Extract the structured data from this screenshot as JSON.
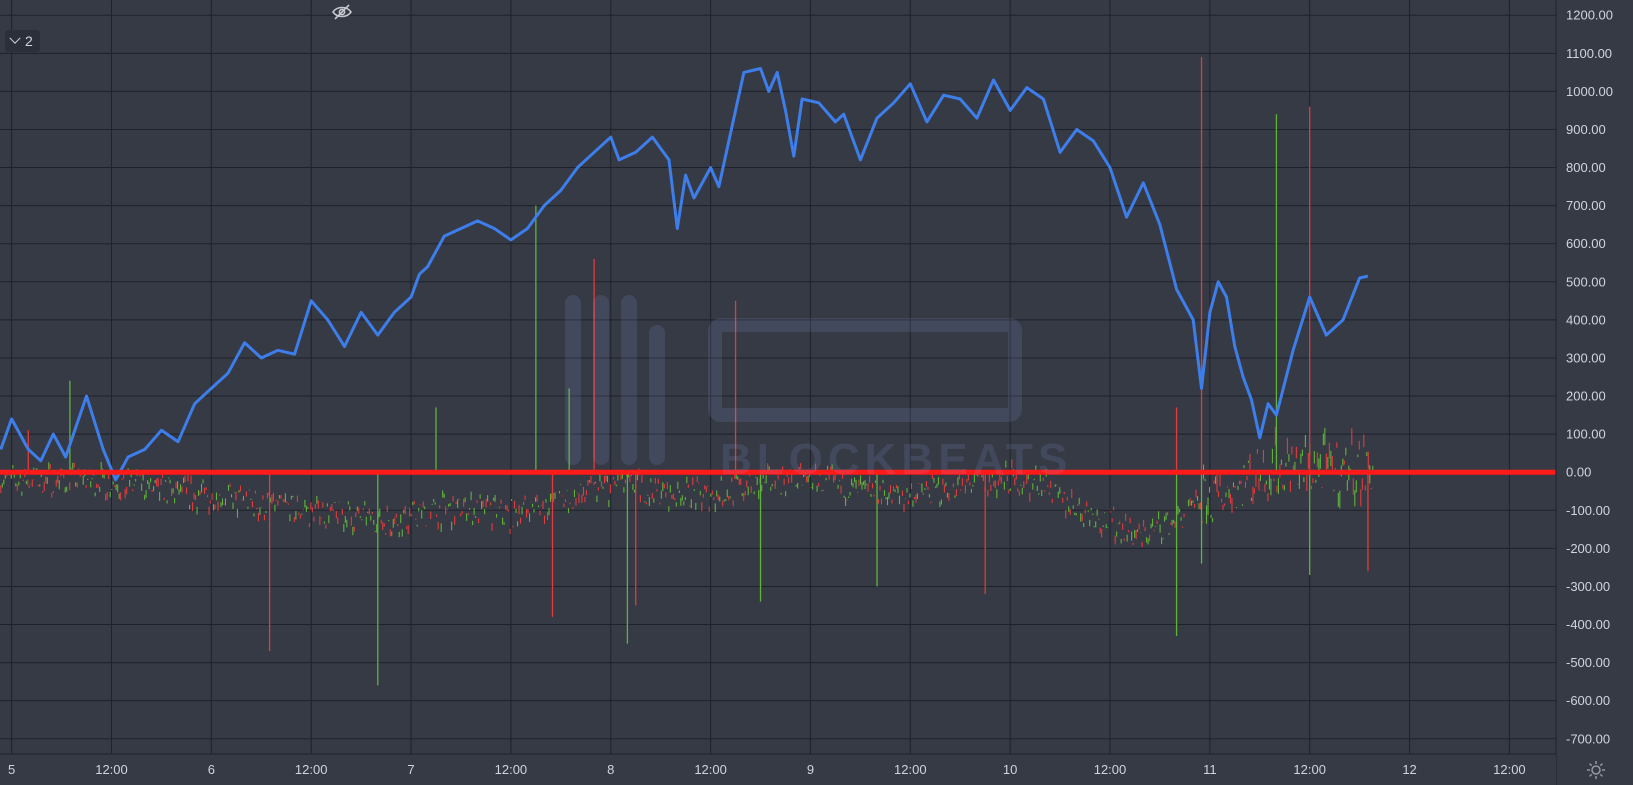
{
  "legend": {
    "count_label": "2"
  },
  "watermark": {
    "text": "BLOCKBEATS"
  },
  "colors": {
    "line": "#3d7eea",
    "baseline": "#ff1a1a",
    "up": "#5fb33a",
    "down": "#e23b3b",
    "grid": "#1e222b"
  },
  "chart_data": {
    "type": "line",
    "title": "",
    "xlabel": "",
    "ylabel": "",
    "ylim": [
      -740,
      1240
    ],
    "y_ticks": [
      "1200.00",
      "1100.00",
      "1000.00",
      "900.00",
      "800.00",
      "700.00",
      "600.00",
      "500.00",
      "400.00",
      "300.00",
      "200.00",
      "100.00",
      "0.00",
      "-100.00",
      "-200.00",
      "-300.00",
      "-400.00",
      "-500.00",
      "-600.00",
      "-700.00"
    ],
    "x_ticks": [
      {
        "label": "5",
        "t": 0
      },
      {
        "label": "12:00",
        "t": 12
      },
      {
        "label": "6",
        "t": 24
      },
      {
        "label": "12:00",
        "t": 36
      },
      {
        "label": "7",
        "t": 48
      },
      {
        "label": "12:00",
        "t": 60
      },
      {
        "label": "8",
        "t": 72
      },
      {
        "label": "12:00",
        "t": 84
      },
      {
        "label": "9",
        "t": 96
      },
      {
        "label": "12:00",
        "t": 108
      },
      {
        "label": "10",
        "t": 120
      },
      {
        "label": "12:00",
        "t": 132
      },
      {
        "label": "11",
        "t": 144
      },
      {
        "label": "12:00",
        "t": 156
      },
      {
        "label": "12",
        "t": 168
      },
      {
        "label": "12:00",
        "t": 180
      }
    ],
    "x_range": [
      -1.4,
      185.6
    ],
    "series": [
      {
        "values": [
          [
            -1.3,
            60
          ],
          [
            0,
            140
          ],
          [
            2,
            60
          ],
          [
            3.5,
            30
          ],
          [
            5,
            100
          ],
          [
            6.5,
            40
          ],
          [
            9,
            200
          ],
          [
            11,
            60
          ],
          [
            12.5,
            -20
          ],
          [
            14,
            40
          ],
          [
            16,
            60
          ],
          [
            18,
            110
          ],
          [
            20,
            80
          ],
          [
            22,
            180
          ],
          [
            24,
            220
          ],
          [
            26,
            260
          ],
          [
            28,
            340
          ],
          [
            30,
            300
          ],
          [
            32,
            320
          ],
          [
            34,
            310
          ],
          [
            36,
            450
          ],
          [
            38,
            400
          ],
          [
            40,
            330
          ],
          [
            42,
            420
          ],
          [
            44,
            360
          ],
          [
            46,
            420
          ],
          [
            48,
            460
          ],
          [
            49,
            520
          ],
          [
            50,
            540
          ],
          [
            52,
            620
          ],
          [
            54,
            640
          ],
          [
            56,
            660
          ],
          [
            58,
            640
          ],
          [
            60,
            610
          ],
          [
            62,
            640
          ],
          [
            64,
            700
          ],
          [
            66,
            740
          ],
          [
            68,
            800
          ],
          [
            70,
            840
          ],
          [
            72,
            880
          ],
          [
            73,
            820
          ],
          [
            75,
            840
          ],
          [
            77,
            880
          ],
          [
            79,
            820
          ],
          [
            80,
            640
          ],
          [
            81,
            780
          ],
          [
            82,
            720
          ],
          [
            84,
            800
          ],
          [
            85,
            750
          ],
          [
            86,
            850
          ],
          [
            88,
            1050
          ],
          [
            90,
            1060
          ],
          [
            91,
            1000
          ],
          [
            92,
            1050
          ],
          [
            93,
            950
          ],
          [
            94,
            830
          ],
          [
            95,
            980
          ],
          [
            97,
            970
          ],
          [
            99,
            920
          ],
          [
            100,
            940
          ],
          [
            102,
            820
          ],
          [
            104,
            930
          ],
          [
            106,
            970
          ],
          [
            108,
            1020
          ],
          [
            110,
            920
          ],
          [
            112,
            990
          ],
          [
            114,
            980
          ],
          [
            116,
            930
          ],
          [
            118,
            1030
          ],
          [
            120,
            950
          ],
          [
            122,
            1010
          ],
          [
            124,
            980
          ],
          [
            126,
            840
          ],
          [
            128,
            900
          ],
          [
            130,
            870
          ],
          [
            132,
            800
          ],
          [
            134,
            670
          ],
          [
            136,
            760
          ],
          [
            138,
            650
          ],
          [
            140,
            480
          ],
          [
            142,
            400
          ],
          [
            143,
            220
          ],
          [
            144,
            420
          ],
          [
            145,
            500
          ],
          [
            146,
            460
          ],
          [
            147,
            330
          ],
          [
            148,
            250
          ],
          [
            149,
            190
          ],
          [
            150,
            90
          ],
          [
            151,
            180
          ],
          [
            152,
            150
          ],
          [
            154,
            320
          ],
          [
            156,
            460
          ],
          [
            158,
            360
          ],
          [
            160,
            400
          ],
          [
            162,
            510
          ],
          [
            163,
            515
          ]
        ]
      }
    ],
    "annotations": [
      {
        "type": "horizontal_line",
        "y": 0
      }
    ]
  }
}
